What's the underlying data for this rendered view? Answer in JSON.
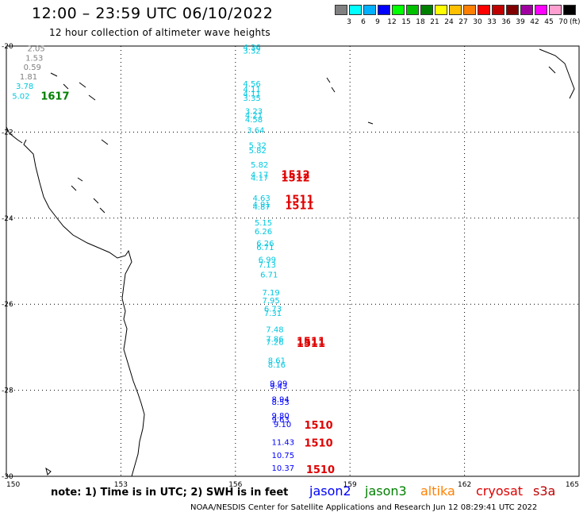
{
  "header": {
    "title": "12:00 – 23:59 UTC 06/10/2022",
    "subtitle": "12 hour collection of altimeter wave heights"
  },
  "colorbar": {
    "labels": [
      "3",
      "6",
      "9",
      "12",
      "15",
      "18",
      "21",
      "24",
      "27",
      "30",
      "33",
      "36",
      "39",
      "42",
      "45",
      "70"
    ],
    "colors": [
      "#808080",
      "#00ffff",
      "#00b0ff",
      "#0000ff",
      "#00ff00",
      "#00c000",
      "#008000",
      "#ffff00",
      "#ffc000",
      "#ff8000",
      "#ff0000",
      "#c00000",
      "#800000",
      "#a000a0",
      "#ff00ff",
      "#ffa0d0",
      "#000000"
    ],
    "unit": "(ft)"
  },
  "map": {
    "lat_labels": [
      "-20",
      "-22",
      "-24",
      "-26",
      "-28",
      "-30"
    ],
    "lon_labels": [
      "150",
      "153",
      "156",
      "159",
      "162",
      "165"
    ],
    "observations": [
      {
        "text": "2.05",
        "lon": 150.55,
        "lat": -20.05,
        "color": "#808080"
      },
      {
        "text": "1.53",
        "lon": 150.5,
        "lat": -20.27,
        "color": "#808080"
      },
      {
        "text": "0.59",
        "lon": 150.45,
        "lat": -20.48,
        "color": "#808080"
      },
      {
        "text": "1.81",
        "lon": 150.35,
        "lat": -20.7,
        "color": "#808080"
      },
      {
        "text": "3.78",
        "lon": 150.25,
        "lat": -20.92,
        "color": "#00c8e0"
      },
      {
        "text": "5.02",
        "lon": 150.15,
        "lat": -21.15,
        "color": "#00c8e0"
      },
      {
        "text": "4.36",
        "lon": 156.2,
        "lat": -20.02,
        "color": "#00c8e0"
      },
      {
        "text": "3.32",
        "lon": 156.2,
        "lat": -20.1,
        "color": "#00c8e0"
      },
      {
        "text": "4.56",
        "lon": 156.2,
        "lat": -20.87,
        "color": "#00c8e0"
      },
      {
        "text": "4.11",
        "lon": 156.2,
        "lat": -21.0,
        "color": "#00c8e0"
      },
      {
        "text": "4.11",
        "lon": 156.2,
        "lat": -21.1,
        "color": "#00c8e0"
      },
      {
        "text": "3.35",
        "lon": 156.2,
        "lat": -21.2,
        "color": "#00c8e0"
      },
      {
        "text": "3.23",
        "lon": 156.25,
        "lat": -21.5,
        "color": "#00c8e0"
      },
      {
        "text": "4.21",
        "lon": 156.25,
        "lat": -21.6,
        "color": "#00c8e0"
      },
      {
        "text": "4.58",
        "lon": 156.25,
        "lat": -21.7,
        "color": "#00c8e0"
      },
      {
        "text": "3.64",
        "lon": 156.3,
        "lat": -21.95,
        "color": "#00c8e0"
      },
      {
        "text": "5.32",
        "lon": 156.35,
        "lat": -22.3,
        "color": "#00c8e0"
      },
      {
        "text": "5.82",
        "lon": 156.35,
        "lat": -22.42,
        "color": "#00c8e0"
      },
      {
        "text": "5.82",
        "lon": 156.4,
        "lat": -22.75,
        "color": "#00c8e0"
      },
      {
        "text": "4.17",
        "lon": 156.4,
        "lat": -22.98,
        "color": "#00c8e0"
      },
      {
        "text": "4.17",
        "lon": 156.4,
        "lat": -23.05,
        "color": "#00c8e0"
      },
      {
        "text": "4.63",
        "lon": 156.45,
        "lat": -23.52,
        "color": "#00c8e0"
      },
      {
        "text": "4.91",
        "lon": 156.45,
        "lat": -23.67,
        "color": "#00c8e0"
      },
      {
        "text": "4.87",
        "lon": 156.45,
        "lat": -23.73,
        "color": "#00c8e0"
      },
      {
        "text": "5.15",
        "lon": 156.5,
        "lat": -24.1,
        "color": "#00c8e0"
      },
      {
        "text": "6.26",
        "lon": 156.5,
        "lat": -24.3,
        "color": "#00c8e0"
      },
      {
        "text": "6.26",
        "lon": 156.55,
        "lat": -24.58,
        "color": "#00c8e0"
      },
      {
        "text": "6.71",
        "lon": 156.55,
        "lat": -24.67,
        "color": "#00c8e0"
      },
      {
        "text": "6.99",
        "lon": 156.6,
        "lat": -24.95,
        "color": "#00c8e0"
      },
      {
        "text": "7.13",
        "lon": 156.6,
        "lat": -25.07,
        "color": "#00c8e0"
      },
      {
        "text": "6.71",
        "lon": 156.65,
        "lat": -25.3,
        "color": "#00c8e0"
      },
      {
        "text": "7.19",
        "lon": 156.7,
        "lat": -25.72,
        "color": "#00c8e0"
      },
      {
        "text": "7.95",
        "lon": 156.7,
        "lat": -25.9,
        "color": "#00c8e0"
      },
      {
        "text": "6.73",
        "lon": 156.75,
        "lat": -26.1,
        "color": "#00c8e0"
      },
      {
        "text": "7.31",
        "lon": 156.75,
        "lat": -26.2,
        "color": "#00c8e0"
      },
      {
        "text": "7.48",
        "lon": 156.8,
        "lat": -26.58,
        "color": "#00c8e0"
      },
      {
        "text": "7.86",
        "lon": 156.8,
        "lat": -26.8,
        "color": "#00c8e0"
      },
      {
        "text": "7.26",
        "lon": 156.8,
        "lat": -26.87,
        "color": "#00c8e0"
      },
      {
        "text": "8.61",
        "lon": 156.85,
        "lat": -27.3,
        "color": "#00c8e0"
      },
      {
        "text": "8.16",
        "lon": 156.85,
        "lat": -27.4,
        "color": "#00c8e0"
      },
      {
        "text": "9.09",
        "lon": 156.9,
        "lat": -27.83,
        "color": "#0000ff"
      },
      {
        "text": "9.43",
        "lon": 156.9,
        "lat": -27.9,
        "color": "#0000ff"
      },
      {
        "text": "8.94",
        "lon": 156.95,
        "lat": -28.2,
        "color": "#0000ff"
      },
      {
        "text": "8.53",
        "lon": 156.95,
        "lat": -28.27,
        "color": "#0000ff"
      },
      {
        "text": "9.80",
        "lon": 156.95,
        "lat": -28.58,
        "color": "#0000ff"
      },
      {
        "text": "9.63",
        "lon": 156.95,
        "lat": -28.67,
        "color": "#0000ff"
      },
      {
        "text": "9.10",
        "lon": 157.0,
        "lat": -28.78,
        "color": "#0000ff"
      },
      {
        "text": "11.43",
        "lon": 156.95,
        "lat": -29.2,
        "color": "#0000ff"
      },
      {
        "text": "10.75",
        "lon": 156.95,
        "lat": -29.5,
        "color": "#0000ff"
      },
      {
        "text": "10.37",
        "lon": 156.95,
        "lat": -29.8,
        "color": "#0000ff"
      }
    ],
    "time_labels": [
      {
        "text": "1617",
        "lon": 150.9,
        "lat": -21.15,
        "color": "#008000"
      },
      {
        "text": "1512",
        "lon": 157.2,
        "lat": -22.98,
        "color": "#e00000"
      },
      {
        "text": "1512",
        "lon": 157.2,
        "lat": -23.05,
        "color": "#e00000"
      },
      {
        "text": "1511",
        "lon": 157.3,
        "lat": -23.55,
        "color": "#e00000"
      },
      {
        "text": "1511",
        "lon": 157.3,
        "lat": -23.7,
        "color": "#e00000"
      },
      {
        "text": "1511",
        "lon": 157.6,
        "lat": -26.85,
        "color": "#e00000"
      },
      {
        "text": "1511",
        "lon": 157.6,
        "lat": -26.9,
        "color": "#e00000"
      },
      {
        "text": "1510",
        "lon": 157.8,
        "lat": -28.8,
        "color": "#e00000"
      },
      {
        "text": "1510",
        "lon": 157.8,
        "lat": -29.22,
        "color": "#e00000"
      },
      {
        "text": "1510",
        "lon": 157.85,
        "lat": -29.83,
        "color": "#e00000"
      }
    ]
  },
  "footer": {
    "note": "note:  1) Time is in UTC;  2) SWH is in feet",
    "legend": [
      {
        "label": "jason2",
        "color": "#0000ff"
      },
      {
        "label": "jason3",
        "color": "#008000"
      },
      {
        "label": "altika",
        "color": "#ff8000"
      },
      {
        "label": "cryosat",
        "color": "#e00000"
      },
      {
        "label": "s3a",
        "color": "#c00000"
      }
    ],
    "credit": "NOAA/NESDIS Center for Satellite Applications and Research     Jun 12 08:29:41 UTC 2022"
  }
}
